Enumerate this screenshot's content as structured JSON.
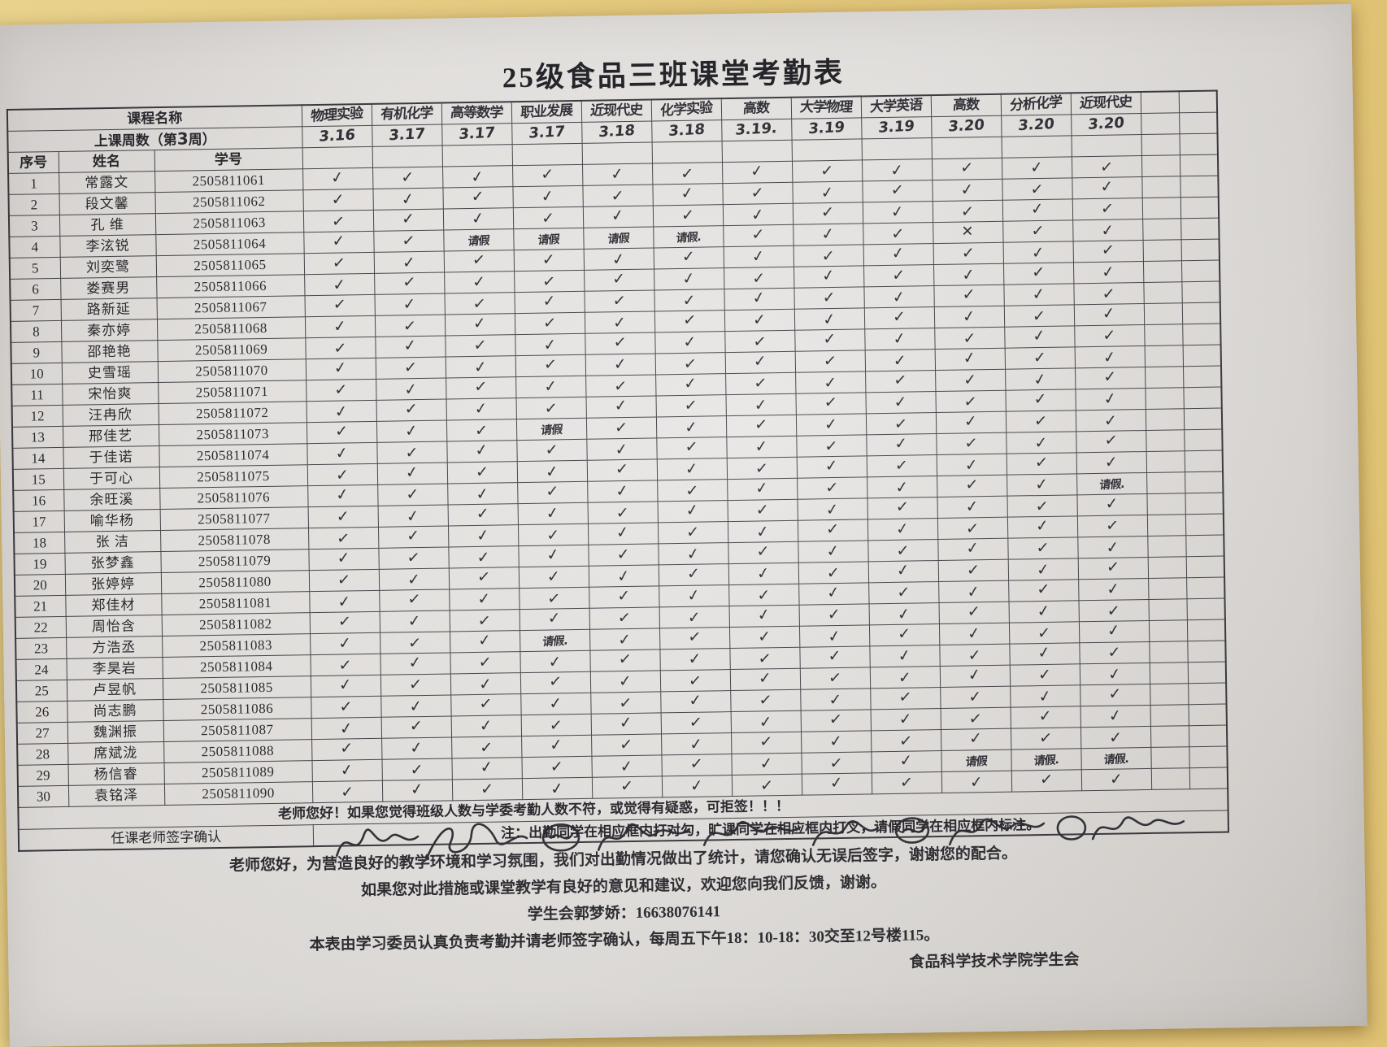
{
  "title": "25级食品三班课堂考勤表",
  "header": {
    "course_label": "课程名称",
    "week_label_prefix": "上课周数（第",
    "week_number": "3",
    "week_label_suffix": "周）",
    "col_no": "序号",
    "col_name": "姓名",
    "col_id": "学号",
    "courses": [
      "物理实验",
      "有机化学",
      "高等数学",
      "职业发展",
      "近现代史",
      "化学实验",
      "高数",
      "大学物理",
      "大学英语",
      "高数",
      "分析化学",
      "近现代史"
    ],
    "dates": [
      "3.16",
      "3.17",
      "3.17",
      "3.17",
      "3.18",
      "3.18",
      "3.19.",
      "3.19",
      "3.19",
      "3.20",
      "3.20",
      "3.20"
    ]
  },
  "students": [
    {
      "no": "1",
      "name": "常露文",
      "id": "2505811061",
      "marks": [
        "✓",
        "✓",
        "✓",
        "✓",
        "✓",
        "✓",
        "✓",
        "✓",
        "✓",
        "✓",
        "✓",
        "✓"
      ]
    },
    {
      "no": "2",
      "name": "段文馨",
      "id": "2505811062",
      "marks": [
        "✓",
        "✓",
        "✓",
        "✓",
        "✓",
        "✓",
        "✓",
        "✓",
        "✓",
        "✓",
        "✓",
        "✓"
      ]
    },
    {
      "no": "3",
      "name": "孔 维",
      "id": "2505811063",
      "marks": [
        "✓",
        "✓",
        "✓",
        "✓",
        "✓",
        "✓",
        "✓",
        "✓",
        "✓",
        "✓",
        "✓",
        "✓"
      ]
    },
    {
      "no": "4",
      "name": "李泫锐",
      "id": "2505811064",
      "marks": [
        "✓",
        "✓",
        "请假",
        "请假",
        "请假",
        "请假.",
        "✓",
        "✓",
        "✓",
        "✕",
        "✓",
        "✓"
      ]
    },
    {
      "no": "5",
      "name": "刘奕鹭",
      "id": "2505811065",
      "marks": [
        "✓",
        "✓",
        "✓",
        "✓",
        "✓",
        "✓",
        "✓",
        "✓",
        "✓",
        "✓",
        "✓",
        "✓"
      ]
    },
    {
      "no": "6",
      "name": "娄赛男",
      "id": "2505811066",
      "marks": [
        "✓",
        "✓",
        "✓",
        "✓",
        "✓",
        "✓",
        "✓",
        "✓",
        "✓",
        "✓",
        "✓",
        "✓"
      ]
    },
    {
      "no": "7",
      "name": "路新延",
      "id": "2505811067",
      "marks": [
        "✓",
        "✓",
        "✓",
        "✓",
        "✓",
        "✓",
        "✓",
        "✓",
        "✓",
        "✓",
        "✓",
        "✓"
      ]
    },
    {
      "no": "8",
      "name": "秦亦婷",
      "id": "2505811068",
      "marks": [
        "✓",
        "✓",
        "✓",
        "✓",
        "✓",
        "✓",
        "✓",
        "✓",
        "✓",
        "✓",
        "✓",
        "✓"
      ]
    },
    {
      "no": "9",
      "name": "邵艳艳",
      "id": "2505811069",
      "marks": [
        "✓",
        "✓",
        "✓",
        "✓",
        "✓",
        "✓",
        "✓",
        "✓",
        "✓",
        "✓",
        "✓",
        "✓"
      ]
    },
    {
      "no": "10",
      "name": "史雪瑶",
      "id": "2505811070",
      "marks": [
        "✓",
        "✓",
        "✓",
        "✓",
        "✓",
        "✓",
        "✓",
        "✓",
        "✓",
        "✓",
        "✓",
        "✓"
      ]
    },
    {
      "no": "11",
      "name": "宋怡爽",
      "id": "2505811071",
      "marks": [
        "✓",
        "✓",
        "✓",
        "✓",
        "✓",
        "✓",
        "✓",
        "✓",
        "✓",
        "✓",
        "✓",
        "✓"
      ]
    },
    {
      "no": "12",
      "name": "汪冉欣",
      "id": "2505811072",
      "marks": [
        "✓",
        "✓",
        "✓",
        "✓",
        "✓",
        "✓",
        "✓",
        "✓",
        "✓",
        "✓",
        "✓",
        "✓"
      ]
    },
    {
      "no": "13",
      "name": "邢佳艺",
      "id": "2505811073",
      "marks": [
        "✓",
        "✓",
        "✓",
        "请假",
        "✓",
        "✓",
        "✓",
        "✓",
        "✓",
        "✓",
        "✓",
        "✓"
      ]
    },
    {
      "no": "14",
      "name": "于佳诺",
      "id": "2505811074",
      "marks": [
        "✓",
        "✓",
        "✓",
        "✓",
        "✓",
        "✓",
        "✓",
        "✓",
        "✓",
        "✓",
        "✓",
        "✓"
      ]
    },
    {
      "no": "15",
      "name": "于可心",
      "id": "2505811075",
      "marks": [
        "✓",
        "✓",
        "✓",
        "✓",
        "✓",
        "✓",
        "✓",
        "✓",
        "✓",
        "✓",
        "✓",
        "✓"
      ]
    },
    {
      "no": "16",
      "name": "余旺溪",
      "id": "2505811076",
      "marks": [
        "✓",
        "✓",
        "✓",
        "✓",
        "✓",
        "✓",
        "✓",
        "✓",
        "✓",
        "✓",
        "✓",
        "请假."
      ]
    },
    {
      "no": "17",
      "name": "喻华杨",
      "id": "2505811077",
      "marks": [
        "✓",
        "✓",
        "✓",
        "✓",
        "✓",
        "✓",
        "✓",
        "✓",
        "✓",
        "✓",
        "✓",
        "✓"
      ]
    },
    {
      "no": "18",
      "name": "张 洁",
      "id": "2505811078",
      "marks": [
        "✓",
        "✓",
        "✓",
        "✓",
        "✓",
        "✓",
        "✓",
        "✓",
        "✓",
        "✓",
        "✓",
        "✓"
      ]
    },
    {
      "no": "19",
      "name": "张梦鑫",
      "id": "2505811079",
      "marks": [
        "✓",
        "✓",
        "✓",
        "✓",
        "✓",
        "✓",
        "✓",
        "✓",
        "✓",
        "✓",
        "✓",
        "✓"
      ]
    },
    {
      "no": "20",
      "name": "张婷婷",
      "id": "2505811080",
      "marks": [
        "✓",
        "✓",
        "✓",
        "✓",
        "✓",
        "✓",
        "✓",
        "✓",
        "✓",
        "✓",
        "✓",
        "✓"
      ]
    },
    {
      "no": "21",
      "name": "郑佳材",
      "id": "2505811081",
      "marks": [
        "✓",
        "✓",
        "✓",
        "✓",
        "✓",
        "✓",
        "✓",
        "✓",
        "✓",
        "✓",
        "✓",
        "✓"
      ]
    },
    {
      "no": "22",
      "name": "周怡含",
      "id": "2505811082",
      "marks": [
        "✓",
        "✓",
        "✓",
        "✓",
        "✓",
        "✓",
        "✓",
        "✓",
        "✓",
        "✓",
        "✓",
        "✓"
      ]
    },
    {
      "no": "23",
      "name": "方浩丞",
      "id": "2505811083",
      "marks": [
        "✓",
        "✓",
        "✓",
        "请假.",
        "✓",
        "✓",
        "✓",
        "✓",
        "✓",
        "✓",
        "✓",
        "✓"
      ]
    },
    {
      "no": "24",
      "name": "李昊岩",
      "id": "2505811084",
      "marks": [
        "✓",
        "✓",
        "✓",
        "✓",
        "✓",
        "✓",
        "✓",
        "✓",
        "✓",
        "✓",
        "✓",
        "✓"
      ]
    },
    {
      "no": "25",
      "name": "卢昱帆",
      "id": "2505811085",
      "marks": [
        "✓",
        "✓",
        "✓",
        "✓",
        "✓",
        "✓",
        "✓",
        "✓",
        "✓",
        "✓",
        "✓",
        "✓"
      ]
    },
    {
      "no": "26",
      "name": "尚志鹏",
      "id": "2505811086",
      "marks": [
        "✓",
        "✓",
        "✓",
        "✓",
        "✓",
        "✓",
        "✓",
        "✓",
        "✓",
        "✓",
        "✓",
        "✓"
      ]
    },
    {
      "no": "27",
      "name": "魏渊振",
      "id": "2505811087",
      "marks": [
        "✓",
        "✓",
        "✓",
        "✓",
        "✓",
        "✓",
        "✓",
        "✓",
        "✓",
        "✓",
        "✓",
        "✓"
      ]
    },
    {
      "no": "28",
      "name": "席斌泷",
      "id": "2505811088",
      "marks": [
        "✓",
        "✓",
        "✓",
        "✓",
        "✓",
        "✓",
        "✓",
        "✓",
        "✓",
        "✓",
        "✓",
        "✓"
      ]
    },
    {
      "no": "29",
      "name": "杨信睿",
      "id": "2505811089",
      "marks": [
        "✓",
        "✓",
        "✓",
        "✓",
        "✓",
        "✓",
        "✓",
        "✓",
        "✓",
        "请假",
        "请假.",
        "请假."
      ]
    },
    {
      "no": "30",
      "name": "袁铭泽",
      "id": "2505811090",
      "marks": [
        "✓",
        "✓",
        "✓",
        "✓",
        "✓",
        "✓",
        "✓",
        "✓",
        "✓",
        "✓",
        "✓",
        "✓"
      ]
    }
  ],
  "footer": {
    "reject_note": "老师您好！如果您觉得班级人数与学委考勤人数不符，或觉得有疑惑，可拒签！！！",
    "sign_label": "任课老师签字确认",
    "mark_note": "注：出勤同学在相应框内打对勾，旷课同学在相应框内打叉，请假同学在相应框内标注。",
    "p1": "老师您好，为营造良好的教学环境和学习氛围，我们对出勤情况做出了统计，请您确认无误后签字，谢谢您的配合。",
    "p2": "如果您对此措施或课堂教学有良好的意见和建议，欢迎您向我们反馈，谢谢。",
    "p3": "学生会郭梦娇：16638076141",
    "p4": "本表由学习委员认真负责考勤并请老师签字确认，每周五下午18：10-18：30交至12号楼115。",
    "org": "食品科学技术学院学生会"
  },
  "colors": {
    "desk": "#e3c87c",
    "paper": "#e7e5e3",
    "ink": "#23232b",
    "grid_line": "#3a3a40"
  }
}
